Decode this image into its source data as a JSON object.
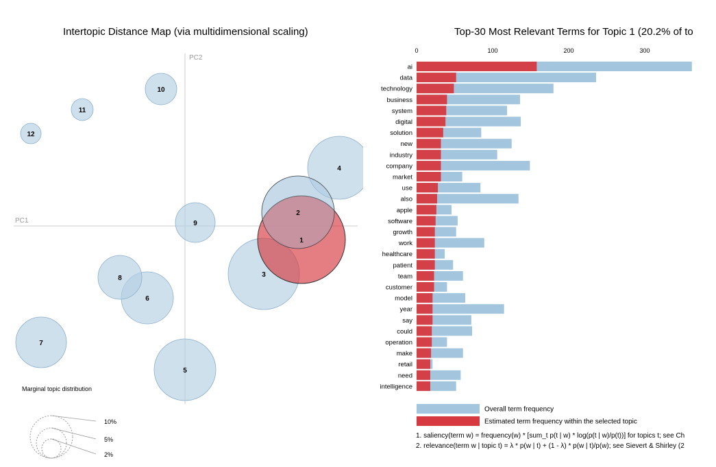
{
  "titles": {
    "left": "Intertopic Distance Map (via multidimensional scaling)",
    "right": "Top-30 Most Relevant Terms for Topic 1 (20.2% of to"
  },
  "colors": {
    "topic_fill": "#b5cfe4",
    "topic_stroke": "#8aaecb",
    "selected": "#d6393f",
    "overall_bar": "#a3c6de",
    "axis": "#cccccc"
  },
  "chart_data": [
    {
      "type": "scatter",
      "name": "intertopic-distance-map",
      "xlabel": "PC1",
      "ylabel": "PC2",
      "selected_topic": 1,
      "topics": [
        {
          "id": "1",
          "pc1": 1.7,
          "pc2": -0.2,
          "r": 64
        },
        {
          "id": "2",
          "pc1": 1.65,
          "pc2": 0.2,
          "r": 53
        },
        {
          "id": "3",
          "pc1": 1.15,
          "pc2": -0.7,
          "r": 52
        },
        {
          "id": "4",
          "pc1": 2.25,
          "pc2": 0.85,
          "r": 46
        },
        {
          "id": "5",
          "pc1": 0.0,
          "pc2": -2.1,
          "r": 45
        },
        {
          "id": "6",
          "pc1": -0.55,
          "pc2": -1.05,
          "r": 38
        },
        {
          "id": "7",
          "pc1": -2.1,
          "pc2": -1.7,
          "r": 37
        },
        {
          "id": "8",
          "pc1": -0.95,
          "pc2": -0.75,
          "r": 32
        },
        {
          "id": "9",
          "pc1": 0.15,
          "pc2": 0.05,
          "r": 29
        },
        {
          "id": "10",
          "pc1": -0.35,
          "pc2": 2.0,
          "r": 23
        },
        {
          "id": "11",
          "pc1": -1.5,
          "pc2": 1.7,
          "r": 16
        },
        {
          "id": "12",
          "pc1": -2.25,
          "pc2": 1.35,
          "r": 15
        }
      ],
      "marginal_legend": {
        "title": "Marginal topic distribution",
        "items": [
          {
            "label": "2%",
            "r": 14
          },
          {
            "label": "5%",
            "r": 22
          },
          {
            "label": "10%",
            "r": 31
          }
        ]
      }
    },
    {
      "type": "bar",
      "name": "top-terms",
      "orientation": "horizontal",
      "xlim": [
        0,
        360
      ],
      "x_ticks": [
        0,
        100,
        200,
        300
      ],
      "legend": [
        {
          "label": "Overall term frequency",
          "key": "overall_bar"
        },
        {
          "label": "Estimated term frequency within the selected topic",
          "key": "selected"
        }
      ],
      "terms": [
        {
          "term": "ai",
          "overall": 362,
          "topic": 158
        },
        {
          "term": "data",
          "overall": 236,
          "topic": 52
        },
        {
          "term": "technology",
          "overall": 180,
          "topic": 49
        },
        {
          "term": "business",
          "overall": 136,
          "topic": 40
        },
        {
          "term": "system",
          "overall": 119,
          "topic": 39
        },
        {
          "term": "digital",
          "overall": 137,
          "topic": 38
        },
        {
          "term": "solution",
          "overall": 85,
          "topic": 35
        },
        {
          "term": "new",
          "overall": 125,
          "topic": 32
        },
        {
          "term": "industry",
          "overall": 106,
          "topic": 32
        },
        {
          "term": "company",
          "overall": 149,
          "topic": 32
        },
        {
          "term": "market",
          "overall": 60,
          "topic": 32
        },
        {
          "term": "use",
          "overall": 84,
          "topic": 28
        },
        {
          "term": "also",
          "overall": 134,
          "topic": 27
        },
        {
          "term": "apple",
          "overall": 46,
          "topic": 26
        },
        {
          "term": "software",
          "overall": 54,
          "topic": 25
        },
        {
          "term": "growth",
          "overall": 52,
          "topic": 24
        },
        {
          "term": "work",
          "overall": 89,
          "topic": 24
        },
        {
          "term": "healthcare",
          "overall": 37,
          "topic": 24
        },
        {
          "term": "patient",
          "overall": 48,
          "topic": 24
        },
        {
          "term": "team",
          "overall": 61,
          "topic": 23
        },
        {
          "term": "customer",
          "overall": 40,
          "topic": 23
        },
        {
          "term": "model",
          "overall": 64,
          "topic": 21
        },
        {
          "term": "year",
          "overall": 115,
          "topic": 21
        },
        {
          "term": "say",
          "overall": 72,
          "topic": 21
        },
        {
          "term": "could",
          "overall": 73,
          "topic": 20
        },
        {
          "term": "operation",
          "overall": 40,
          "topic": 20
        },
        {
          "term": "make",
          "overall": 61,
          "topic": 19
        },
        {
          "term": "retail",
          "overall": 21,
          "topic": 18
        },
        {
          "term": "need",
          "overall": 58,
          "topic": 18
        },
        {
          "term": "intelligence",
          "overall": 52,
          "topic": 18
        }
      ]
    }
  ],
  "footnotes": [
    "1. saliency(term w) = frequency(w) * [sum_t p(t | w) * log(p(t | w)/p(t))] for topics t; see Ch",
    "2. relevance(term w | topic t) = λ * p(w | t) + (1 - λ) * p(w | t)/p(w); see Sievert & Shirley (2"
  ]
}
